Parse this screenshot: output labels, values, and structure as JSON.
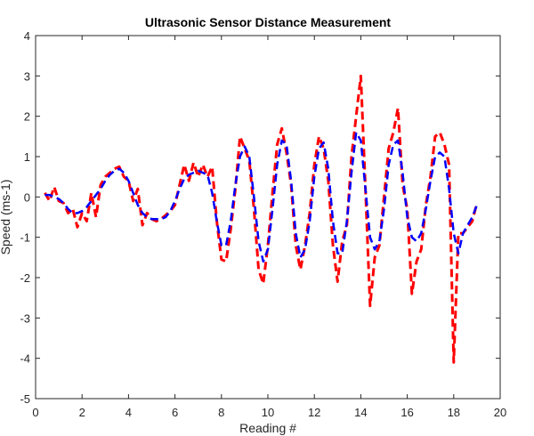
{
  "chart_data": {
    "type": "line",
    "title": "Ultrasonic Sensor Distance Measurement",
    "xlabel": "Reading #",
    "ylabel": "Speed (ms-1)",
    "x": [
      0.4,
      0.6,
      0.8,
      1.0,
      1.2,
      1.4,
      1.6,
      1.8,
      2.0,
      2.2,
      2.4,
      2.6,
      2.8,
      3.0,
      3.2,
      3.4,
      3.6,
      3.8,
      4.0,
      4.2,
      4.4,
      4.6,
      4.8,
      5.0,
      5.2,
      5.4,
      5.6,
      5.8,
      6.0,
      6.2,
      6.4,
      6.6,
      6.8,
      7.0,
      7.2,
      7.4,
      7.6,
      7.8,
      8.0,
      8.2,
      8.4,
      8.6,
      8.8,
      9.0,
      9.2,
      9.4,
      9.6,
      9.8,
      10.0,
      10.2,
      10.4,
      10.6,
      10.8,
      11.0,
      11.2,
      11.4,
      11.6,
      11.8,
      12.0,
      12.2,
      12.4,
      12.6,
      12.8,
      13.0,
      13.2,
      13.4,
      13.6,
      13.8,
      14.0,
      14.2,
      14.4,
      14.6,
      14.8,
      15.0,
      15.2,
      15.4,
      15.6,
      15.8,
      16.0,
      16.2,
      16.4,
      16.6,
      16.8,
      17.0,
      17.2,
      17.4,
      17.6,
      17.8,
      18.0,
      18.2,
      18.4,
      18.6,
      18.8,
      19.0
    ],
    "series": [
      {
        "color": "#ff0000",
        "values": [
          0.1,
          -0.1,
          0.25,
          -0.1,
          -0.15,
          -0.4,
          -0.3,
          -0.75,
          -0.4,
          -0.6,
          0.1,
          -0.5,
          0.3,
          0.5,
          0.6,
          0.7,
          0.75,
          0.5,
          0.4,
          -0.1,
          0.2,
          -0.7,
          -0.4,
          -0.55,
          -0.6,
          -0.55,
          -0.45,
          -0.35,
          -0.2,
          0.3,
          0.8,
          0.4,
          0.85,
          0.5,
          0.8,
          0.5,
          0.75,
          -0.6,
          -1.55,
          -1.6,
          -0.8,
          0.2,
          1.5,
          1.2,
          0.9,
          -0.3,
          -1.8,
          -2.15,
          -1.2,
          0.1,
          1.3,
          1.7,
          1.1,
          0.3,
          -1.2,
          -1.8,
          -1.2,
          -0.4,
          0.8,
          1.5,
          1.2,
          0.4,
          -1.2,
          -2.1,
          -1.1,
          -0.7,
          1.0,
          2.0,
          3.0,
          0.2,
          -2.7,
          -1.5,
          -1.2,
          0.0,
          1.2,
          1.6,
          2.2,
          0.3,
          -0.3,
          -2.4,
          -1.6,
          -1.3,
          -0.2,
          0.5,
          1.5,
          1.6,
          1.3,
          0.8,
          -4.1,
          -0.9,
          -0.9,
          -0.75,
          -0.6,
          -0.15
        ]
      },
      {
        "color": "#0000ff",
        "values": [
          0.05,
          0.05,
          0.0,
          -0.05,
          -0.15,
          -0.3,
          -0.4,
          -0.4,
          -0.35,
          -0.25,
          -0.1,
          0.05,
          0.2,
          0.4,
          0.55,
          0.65,
          0.7,
          0.6,
          0.4,
          0.1,
          -0.2,
          -0.4,
          -0.5,
          -0.55,
          -0.55,
          -0.55,
          -0.5,
          -0.35,
          -0.1,
          0.2,
          0.45,
          0.55,
          0.6,
          0.65,
          0.6,
          0.55,
          0.1,
          -0.6,
          -1.2,
          -1.2,
          -0.6,
          0.3,
          1.0,
          1.25,
          1.0,
          0.0,
          -1.1,
          -1.6,
          -1.3,
          -0.3,
          0.8,
          1.4,
          1.3,
          0.4,
          -0.9,
          -1.5,
          -1.3,
          -0.6,
          0.5,
          1.2,
          1.35,
          0.7,
          -0.6,
          -1.4,
          -1.4,
          -0.6,
          0.6,
          1.6,
          1.4,
          0.2,
          -1.0,
          -1.3,
          -1.1,
          -0.3,
          0.8,
          1.3,
          1.4,
          0.6,
          -0.5,
          -1.0,
          -1.1,
          -0.9,
          -0.3,
          0.4,
          1.0,
          1.1,
          1.0,
          0.2,
          -0.9,
          -1.4,
          -0.9,
          -0.7,
          -0.5,
          -0.2
        ]
      }
    ],
    "xlim": [
      0,
      20
    ],
    "xticks": [
      0,
      2,
      4,
      6,
      8,
      10,
      12,
      14,
      16,
      18,
      20
    ],
    "ylim": [
      -5,
      4
    ],
    "yticks": [
      -5,
      -4,
      -3,
      -2,
      -1,
      0,
      1,
      2,
      3,
      4
    ]
  }
}
